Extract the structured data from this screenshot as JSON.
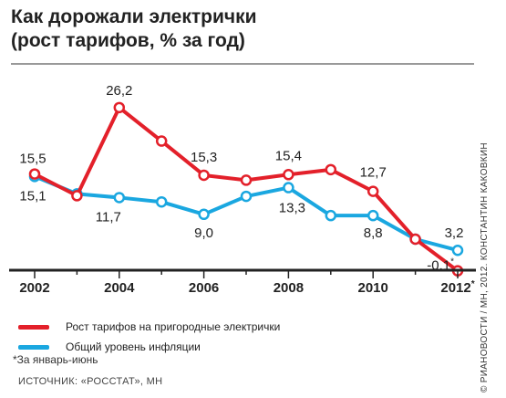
{
  "title": {
    "line1": "Как дорожали электрички",
    "line2": "(рост тарифов, % за год)"
  },
  "credit": "© РИАНОВОСТИ / МН, 2012. КОНСТАНТИН КАКОВКИН",
  "legend": [
    {
      "label": "Рост тарифов на пригородные электрички",
      "color": "#e3202a"
    },
    {
      "label": "Общий уровень инфляции",
      "color": "#1aa7e0"
    }
  ],
  "footnote": "*За январь-июнь",
  "source": "ИСТОЧНИК: «РОССТАТ», МН",
  "chart_data": {
    "type": "line",
    "title": "Как дорожали электрички",
    "subtitle": "(рост тарифов, % за год)",
    "x": [
      2002,
      2003,
      2004,
      2005,
      2006,
      2007,
      2008,
      2009,
      2010,
      2011,
      2012
    ],
    "x_tick_labels": [
      "2002",
      "2004",
      "2006",
      "2008",
      "2010",
      "2012*"
    ],
    "ylim": [
      -1,
      30
    ],
    "grid": false,
    "legend_position": "bottom",
    "series": [
      {
        "name": "Рост тарифов на пригородные электрички",
        "color": "#e3202a",
        "values": [
          15.5,
          12.0,
          26.2,
          20.8,
          15.3,
          14.5,
          15.4,
          16.2,
          12.7,
          5.0,
          -0.1
        ]
      },
      {
        "name": "Общий уровень инфляции",
        "color": "#1aa7e0",
        "values": [
          15.1,
          12.3,
          11.7,
          11.0,
          9.0,
          11.9,
          13.3,
          8.8,
          8.8,
          5.0,
          3.2
        ]
      }
    ],
    "data_labels": [
      {
        "text": "15,5",
        "series": 0,
        "index": 0
      },
      {
        "text": "26,2",
        "series": 0,
        "index": 2
      },
      {
        "text": "15,3",
        "series": 0,
        "index": 4
      },
      {
        "text": "15,4",
        "series": 0,
        "index": 6
      },
      {
        "text": "12,7",
        "series": 0,
        "index": 8
      },
      {
        "text": "-0,1*",
        "series": 0,
        "index": 10
      },
      {
        "text": "15,1",
        "series": 1,
        "index": 0
      },
      {
        "text": "11,7",
        "series": 1,
        "index": 2
      },
      {
        "text": "9,0",
        "series": 1,
        "index": 4
      },
      {
        "text": "13,3",
        "series": 1,
        "index": 6
      },
      {
        "text": "8,8",
        "series": 1,
        "index": 8
      },
      {
        "text": "3,2",
        "series": 1,
        "index": 10
      }
    ]
  }
}
